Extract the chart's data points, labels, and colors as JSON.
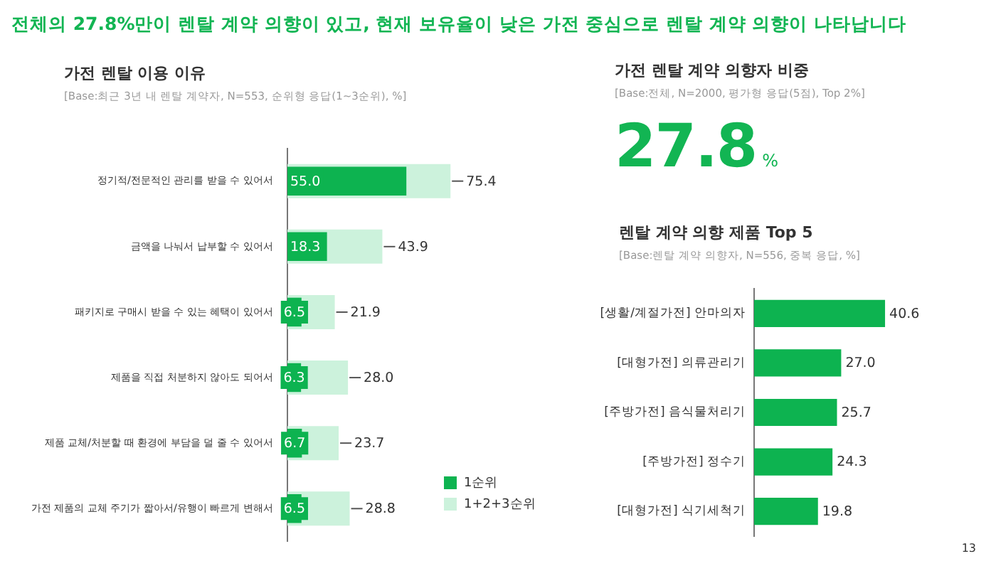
{
  "chart_data": [
    {
      "type": "other",
      "title": "전체의 27.8%만이 렌탈 계약 의향이 있고, 현재 보유율이 낮은 가전 중심으로 렌탈 계약 의향이 나타납니다"
    },
    {
      "type": "bar",
      "orientation": "horizontal",
      "title": "가전 렌탈 이용 이유",
      "subtitle": "[Base:최근 3년 내 렌탈 계약자, N=553, 순위형 응답(1~3순위), %]",
      "categories": [
        "정기적/전문적인 관리를 받을 수 있어서",
        "금액을 나눠서 납부할 수 있어서",
        "패키지로 구매시 받을 수 있는 혜택이 있어서",
        "제품을 직접 처분하지 않아도 되어서",
        "제품 교체/처분할 때 환경에 부담을 덜 줄 수 있어서",
        "가전 제품의 교체 주기가 짧아서/유행이 빠르게 변해서"
      ],
      "series": [
        {
          "name": "1순위",
          "color": "#0db350",
          "values": [
            55.0,
            18.3,
            6.5,
            6.3,
            6.7,
            6.5
          ],
          "value_labels": [
            "55.0",
            "18.3",
            "6.5",
            "6.3",
            "6.7",
            "6.5"
          ]
        },
        {
          "name": "1+2+3순위",
          "color": "#ccf2dc",
          "values": [
            75.4,
            43.9,
            21.9,
            28.0,
            23.7,
            28.8
          ],
          "value_labels": [
            "75.4",
            "43.9",
            "21.9",
            "28.0",
            "23.7",
            "28.8"
          ]
        }
      ],
      "legend": "bottom right",
      "grid": false,
      "tick_labels": "y"
    },
    {
      "type": "other",
      "title": "가전 렌탈 계약 의향자 비중",
      "subtitle": "[Base:전체, N=2000, 평가형 응답(5점), Top 2%]",
      "annotations": [
        "27.8",
        "%"
      ]
    },
    {
      "type": "bar",
      "orientation": "horizontal",
      "title": "렌탈 계약 의향 제품 Top 5",
      "subtitle": "[Base:렌탈 계약 의향자, N=556, 중복 응답, %]",
      "categories": [
        "[생활/계절가전] 안마의자",
        "[대형가전] 의류관리기",
        "[주방가전] 음식물처리기",
        "[주방가전] 정수기",
        "[대형가전] 식기세척기"
      ],
      "series": [
        {
          "color": "#0db350",
          "values": [
            40.6,
            27.0,
            25.7,
            24.3,
            19.8
          ],
          "value_labels": [
            "40.6",
            "27.0",
            "25.7",
            "24.3",
            "19.8"
          ]
        }
      ],
      "grid": false,
      "tick_labels": "y",
      "annotations": [
        "13"
      ]
    }
  ]
}
